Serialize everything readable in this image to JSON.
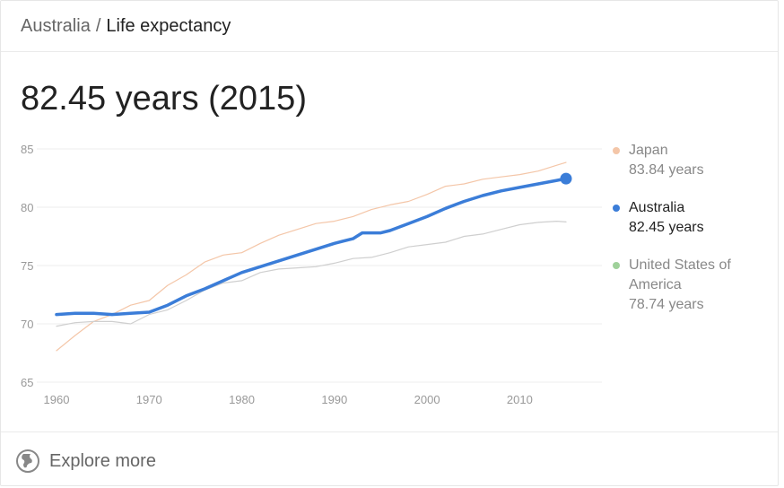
{
  "breadcrumb": {
    "country": "Australia",
    "separator": "/",
    "topic": "Life expectancy"
  },
  "headline": "82.45 years (2015)",
  "legend": [
    {
      "name": "Japan",
      "value": "83.84 years",
      "color": "#f4c6a8",
      "state": "muted"
    },
    {
      "name": "Australia",
      "value": "82.45 years",
      "color": "#3b7dd8",
      "state": "active"
    },
    {
      "name": "United States of America",
      "value": "78.74 years",
      "color": "#9fd19a",
      "state": "muted"
    }
  ],
  "footer": {
    "icon": "globe-icon",
    "label": "Explore more"
  },
  "chart_data": {
    "type": "line",
    "title": "",
    "xlabel": "",
    "ylabel": "",
    "xlim": [
      1960,
      2015
    ],
    "ylim": [
      65,
      85
    ],
    "x_ticks": [
      1960,
      1970,
      1980,
      1990,
      2000,
      2010
    ],
    "y_ticks": [
      65,
      70,
      75,
      80,
      85
    ],
    "grid": "horizontal",
    "legend_position": "right",
    "highlight": {
      "series": "Australia",
      "x": 2015,
      "y": 82.45
    },
    "series": [
      {
        "name": "Japan",
        "color": "#f4c6a8",
        "x": [
          1960,
          1962,
          1964,
          1966,
          1968,
          1970,
          1972,
          1974,
          1976,
          1978,
          1980,
          1982,
          1984,
          1986,
          1988,
          1990,
          1992,
          1994,
          1996,
          1998,
          2000,
          2002,
          2004,
          2006,
          2008,
          2010,
          2012,
          2014,
          2015
        ],
        "values": [
          67.7,
          69.0,
          70.2,
          70.8,
          71.6,
          72.0,
          73.3,
          74.2,
          75.3,
          75.9,
          76.1,
          76.9,
          77.6,
          78.1,
          78.6,
          78.8,
          79.2,
          79.8,
          80.2,
          80.5,
          81.1,
          81.8,
          82.0,
          82.4,
          82.6,
          82.8,
          83.1,
          83.6,
          83.84
        ]
      },
      {
        "name": "Australia",
        "color": "#3b7dd8",
        "x": [
          1960,
          1962,
          1964,
          1966,
          1968,
          1970,
          1972,
          1974,
          1976,
          1978,
          1980,
          1982,
          1984,
          1986,
          1988,
          1990,
          1992,
          1993,
          1995,
          1996,
          1998,
          2000,
          2002,
          2004,
          2006,
          2008,
          2010,
          2012,
          2014,
          2015
        ],
        "values": [
          70.8,
          70.9,
          70.9,
          70.8,
          70.9,
          71.0,
          71.6,
          72.4,
          73.0,
          73.7,
          74.4,
          74.9,
          75.4,
          75.9,
          76.4,
          76.9,
          77.3,
          77.8,
          77.8,
          78.0,
          78.6,
          79.2,
          79.9,
          80.5,
          81.0,
          81.4,
          81.7,
          82.0,
          82.3,
          82.45
        ]
      },
      {
        "name": "United States of America",
        "color": "#cfcfcf",
        "x": [
          1960,
          1962,
          1964,
          1966,
          1968,
          1970,
          1972,
          1974,
          1976,
          1978,
          1980,
          1982,
          1984,
          1986,
          1988,
          1990,
          1992,
          1994,
          1996,
          1998,
          2000,
          2002,
          2004,
          2006,
          2008,
          2010,
          2012,
          2014,
          2015
        ],
        "values": [
          69.8,
          70.1,
          70.2,
          70.2,
          70.0,
          70.8,
          71.2,
          72.0,
          72.9,
          73.5,
          73.7,
          74.4,
          74.7,
          74.8,
          74.9,
          75.2,
          75.6,
          75.7,
          76.1,
          76.6,
          76.8,
          77.0,
          77.5,
          77.7,
          78.1,
          78.5,
          78.7,
          78.8,
          78.74
        ]
      }
    ]
  }
}
